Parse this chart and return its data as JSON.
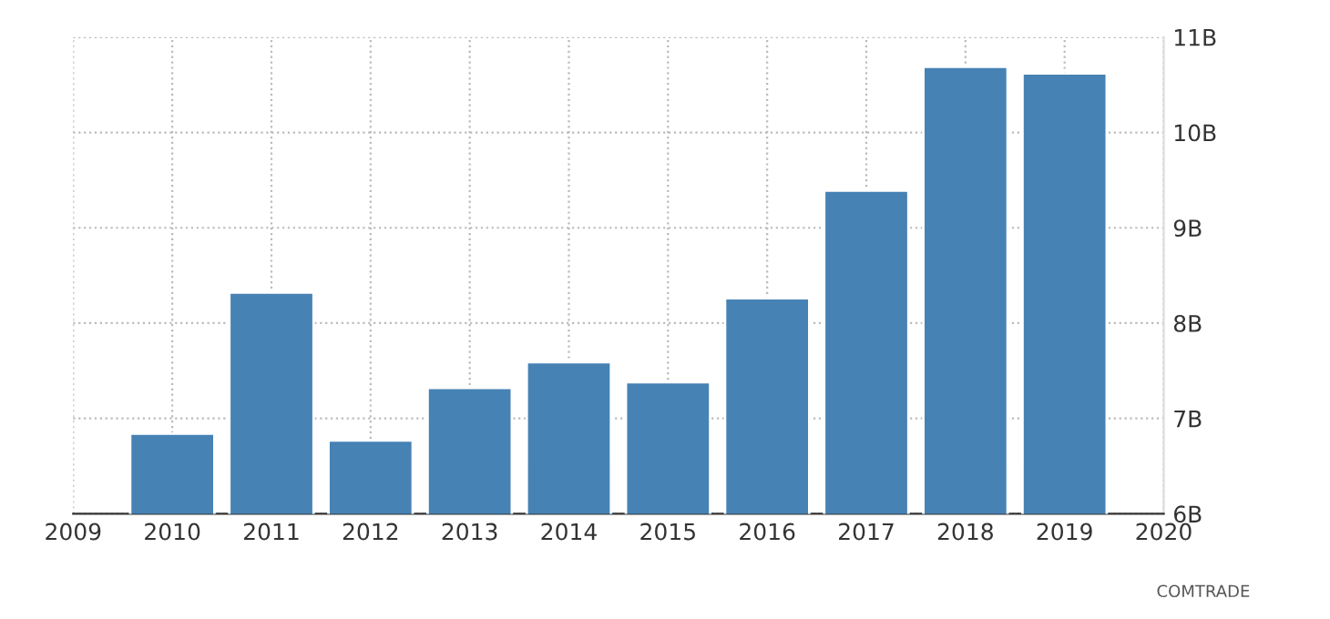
{
  "chart_data": {
    "type": "bar",
    "x": [
      2010,
      2011,
      2012,
      2013,
      2014,
      2015,
      2016,
      2017,
      2018,
      2019
    ],
    "values": [
      6.84,
      8.32,
      6.77,
      7.32,
      7.59,
      7.38,
      8.26,
      9.39,
      10.69,
      10.62
    ],
    "color": "#4682b4",
    "xlim": [
      2009,
      2020
    ],
    "xticks": [
      2009,
      2010,
      2011,
      2012,
      2013,
      2014,
      2015,
      2016,
      2017,
      2018,
      2019,
      2020
    ],
    "ylim": [
      6,
      11
    ],
    "yticks": [
      {
        "value": 6,
        "label": "6B"
      },
      {
        "value": 7,
        "label": "7B"
      },
      {
        "value": 8,
        "label": "8B"
      },
      {
        "value": 9,
        "label": "9B"
      },
      {
        "value": 10,
        "label": "10B"
      },
      {
        "value": 11,
        "label": "11B"
      }
    ],
    "grid": true,
    "annotations": [
      "COMTRADE"
    ]
  }
}
